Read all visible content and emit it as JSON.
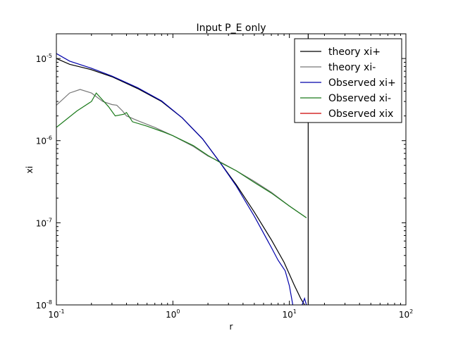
{
  "chart_data": {
    "type": "line",
    "title": "Input P_E only",
    "xlabel": "r",
    "ylabel": "xi",
    "xscale": "log",
    "yscale": "log",
    "xlim": [
      0.1,
      100
    ],
    "ylim": [
      1e-08,
      2e-05
    ],
    "x_ticks": [
      {
        "base": "10",
        "exp": "-1",
        "value": 0.1
      },
      {
        "base": "10",
        "exp": "0",
        "value": 1
      },
      {
        "base": "10",
        "exp": "1",
        "value": 10
      },
      {
        "base": "10",
        "exp": "2",
        "value": 100
      }
    ],
    "y_ticks": [
      {
        "base": "10",
        "exp": "-8",
        "value": 1e-08
      },
      {
        "base": "10",
        "exp": "-7",
        "value": 1e-07
      },
      {
        "base": "10",
        "exp": "-6",
        "value": 1e-06
      },
      {
        "base": "10",
        "exp": "-5",
        "value": 1e-05
      }
    ],
    "grid": false,
    "legend_position": "top-right",
    "vertical_line_x": 14.5,
    "series": [
      {
        "name": "theory xi+",
        "color": "#000000",
        "points": [
          [
            0.1,
            1e-05
          ],
          [
            0.13,
            8.5e-06
          ],
          [
            0.2,
            7.3e-06
          ],
          [
            0.3,
            6e-06
          ],
          [
            0.5,
            4.3e-06
          ],
          [
            0.8,
            3e-06
          ],
          [
            1.2,
            1.9e-06
          ],
          [
            1.8,
            1.05e-06
          ],
          [
            2.5,
            5.6e-07
          ],
          [
            3.5,
            2.9e-07
          ],
          [
            5,
            1.35e-07
          ],
          [
            7,
            6.2e-08
          ],
          [
            9,
            3.3e-08
          ],
          [
            11,
            1.75e-08
          ],
          [
            12.5,
            1.2e-08
          ],
          [
            13.5,
            1e-08
          ]
        ]
      },
      {
        "name": "theory xi-",
        "color": "#777777",
        "points": [
          [
            0.1,
            2.7e-06
          ],
          [
            0.13,
            3.8e-06
          ],
          [
            0.16,
            4.2e-06
          ],
          [
            0.2,
            3.8e-06
          ],
          [
            0.25,
            3e-06
          ],
          [
            0.3,
            2.75e-06
          ],
          [
            0.33,
            2.7e-06
          ],
          [
            0.37,
            2.3e-06
          ],
          [
            0.4,
            2e-06
          ],
          [
            0.5,
            1.75e-06
          ],
          [
            0.7,
            1.45e-06
          ],
          [
            1.0,
            1.15e-06
          ],
          [
            1.5,
            8.5e-07
          ],
          [
            2.0,
            6.5e-07
          ],
          [
            2.5,
            5.6e-07
          ],
          [
            3.5,
            4.3e-07
          ],
          [
            5,
            3.2e-07
          ],
          [
            7,
            2.35e-07
          ],
          [
            10,
            1.6e-07
          ],
          [
            14,
            1.15e-07
          ]
        ]
      },
      {
        "name": "Observed xi+",
        "color": "#0000aa",
        "points": [
          [
            0.1,
            1.15e-05
          ],
          [
            0.13,
            9.3e-06
          ],
          [
            0.2,
            7.6e-06
          ],
          [
            0.3,
            6.1e-06
          ],
          [
            0.5,
            4.4e-06
          ],
          [
            0.8,
            3.05e-06
          ],
          [
            1.2,
            1.9e-06
          ],
          [
            1.8,
            1.05e-06
          ],
          [
            2.5,
            5.6e-07
          ],
          [
            3.5,
            2.8e-07
          ],
          [
            5,
            1.2e-07
          ],
          [
            7,
            5e-08
          ],
          [
            8,
            3.5e-08
          ],
          [
            9.2,
            2.6e-08
          ],
          [
            10,
            1.7e-08
          ],
          [
            10.7,
            1e-08
          ],
          [
            11.5,
            8e-09
          ],
          [
            12.5,
            9e-09
          ],
          [
            13.5,
            1.2e-08
          ],
          [
            14,
            1e-08
          ]
        ]
      },
      {
        "name": "Observed xi-",
        "color": "#1a7a1a",
        "points": [
          [
            0.1,
            1.45e-06
          ],
          [
            0.15,
            2.3e-06
          ],
          [
            0.2,
            3e-06
          ],
          [
            0.22,
            3.8e-06
          ],
          [
            0.28,
            2.6e-06
          ],
          [
            0.32,
            2e-06
          ],
          [
            0.38,
            2.1e-06
          ],
          [
            0.4,
            2.2e-06
          ],
          [
            0.45,
            1.7e-06
          ],
          [
            0.6,
            1.5e-06
          ],
          [
            0.8,
            1.3e-06
          ],
          [
            1.0,
            1.15e-06
          ],
          [
            1.5,
            8.7e-07
          ],
          [
            2.0,
            6.6e-07
          ],
          [
            2.5,
            5.5e-07
          ],
          [
            3.5,
            4.3e-07
          ],
          [
            5,
            3.1e-07
          ],
          [
            7,
            2.3e-07
          ],
          [
            10,
            1.6e-07
          ],
          [
            14,
            1.15e-07
          ]
        ]
      },
      {
        "name": "Observed xix",
        "color": "#cc0000",
        "points": []
      }
    ]
  }
}
